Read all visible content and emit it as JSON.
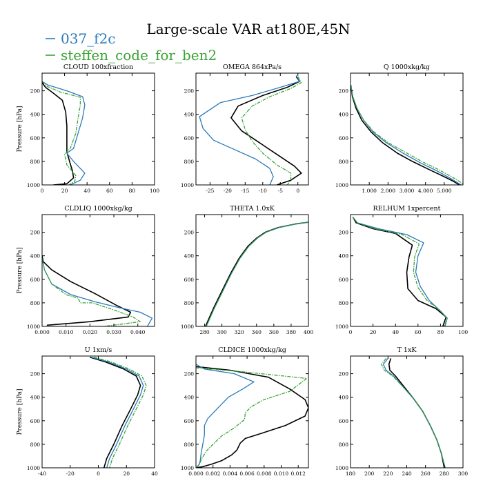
{
  "title": "Large-scale VAR at180E,45N",
  "legend": [
    {
      "label": "037_f2c",
      "color": "#2a7ab8"
    },
    {
      "label": "steffen_code_for_ben2",
      "color": "#3aa335"
    }
  ],
  "series_colors": {
    "black": "#000000",
    "blue": "#2a7ab8",
    "green": "#3aa335"
  },
  "chart_data": [
    {
      "type": "line",
      "title": "CLOUD 100xfraction",
      "ylabel": "Pressure [hPa]",
      "xlim": [
        0,
        100
      ],
      "ylim": [
        1000,
        50
      ],
      "xticks": [
        0,
        20,
        40,
        60,
        80,
        100
      ],
      "xtick_labels": [
        "0",
        "20",
        "40",
        "60",
        "80",
        "100"
      ],
      "yticks": [
        200,
        400,
        600,
        800,
        1000
      ],
      "series": [
        {
          "key": "black",
          "x": [
            0,
            3,
            10,
            18,
            21,
            22,
            22,
            22,
            25,
            27,
            28,
            22,
            10
          ],
          "y": [
            130,
            170,
            220,
            280,
            380,
            500,
            640,
            720,
            820,
            880,
            940,
            990,
            1000
          ]
        },
        {
          "key": "blue",
          "x": [
            0,
            5,
            22,
            36,
            38,
            36,
            32,
            28,
            22,
            28,
            38,
            34,
            25
          ],
          "y": [
            120,
            150,
            200,
            250,
            320,
            430,
            560,
            690,
            730,
            800,
            900,
            960,
            1000
          ]
        },
        {
          "key": "green",
          "x": [
            0,
            4,
            16,
            34,
            34,
            32,
            30,
            25,
            20,
            22,
            30,
            29,
            24
          ],
          "y": [
            120,
            160,
            210,
            255,
            320,
            430,
            560,
            690,
            740,
            830,
            920,
            970,
            1000
          ]
        }
      ]
    },
    {
      "type": "line",
      "title": "OMEGA 864xPa/s",
      "xlim": [
        -29,
        3
      ],
      "ylim": [
        1000,
        50
      ],
      "xticks": [
        -25,
        -20,
        -15,
        -10,
        -5,
        0
      ],
      "xtick_labels": [
        "-25",
        "-20",
        "-15",
        "-10",
        "-5",
        "0"
      ],
      "yticks": [
        200,
        400,
        600,
        800,
        1000
      ],
      "series": [
        {
          "key": "black",
          "x": [
            -0.5,
            0.5,
            -3,
            -10,
            -17,
            -19,
            -16,
            -11,
            -6,
            -1,
            1,
            -2,
            -6
          ],
          "y": [
            80,
            120,
            170,
            240,
            330,
            430,
            540,
            640,
            740,
            840,
            900,
            960,
            1000
          ]
        },
        {
          "key": "blue",
          "x": [
            -0.5,
            0.5,
            -5,
            -13,
            -22,
            -28,
            -27,
            -24,
            -18,
            -12,
            -8,
            -7,
            -8
          ],
          "y": [
            70,
            120,
            170,
            240,
            300,
            420,
            520,
            620,
            700,
            780,
            860,
            930,
            1000
          ]
        },
        {
          "key": "green",
          "x": [
            0,
            1,
            -2,
            -8,
            -13,
            -16,
            -15,
            -13,
            -10,
            -6,
            -2,
            -2,
            -3
          ],
          "y": [
            80,
            130,
            180,
            250,
            330,
            430,
            530,
            630,
            730,
            830,
            900,
            960,
            1000
          ]
        }
      ]
    },
    {
      "type": "line",
      "title": "Q 1000xkg/kg",
      "xlim": [
        0,
        6
      ],
      "ylim": [
        1000,
        50
      ],
      "xticks": [
        1,
        2,
        3,
        4,
        5
      ],
      "xtick_labels": [
        "1.000",
        "2.000",
        "3.000",
        "4.000",
        "5.000"
      ],
      "yticks": [
        200,
        400,
        600,
        800,
        1000
      ],
      "series": [
        {
          "key": "black",
          "x": [
            0.02,
            0.1,
            0.3,
            0.6,
            1.1,
            1.7,
            2.5,
            3.3,
            4.2,
            5.0,
            5.5,
            5.8
          ],
          "y": [
            150,
            250,
            350,
            450,
            550,
            640,
            730,
            800,
            870,
            930,
            970,
            1000
          ]
        },
        {
          "key": "blue",
          "x": [
            0.02,
            0.12,
            0.35,
            0.7,
            1.2,
            1.9,
            2.8,
            3.7,
            4.6,
            5.4,
            5.9
          ],
          "y": [
            150,
            250,
            350,
            450,
            550,
            640,
            730,
            810,
            880,
            950,
            1000
          ]
        },
        {
          "key": "green",
          "x": [
            0.02,
            0.12,
            0.35,
            0.7,
            1.25,
            2.0,
            2.9,
            3.8,
            4.7,
            5.5,
            6.0
          ],
          "y": [
            150,
            250,
            350,
            450,
            550,
            640,
            720,
            800,
            870,
            940,
            990
          ]
        }
      ]
    },
    {
      "type": "line",
      "title": "CLDLIQ 1000xkg/kg",
      "ylabel": "Pressure [hPa]",
      "xlim": [
        0,
        0.047
      ],
      "ylim": [
        1000,
        50
      ],
      "xticks": [
        0,
        0.01,
        0.02,
        0.03,
        0.04
      ],
      "xtick_labels": [
        "0.000",
        "0.010",
        "0.020",
        "0.030",
        "0.040"
      ],
      "yticks": [
        200,
        400,
        600,
        800,
        1000
      ],
      "series": [
        {
          "key": "black",
          "x": [
            0,
            0.0005,
            0.004,
            0.012,
            0.022,
            0.031,
            0.037,
            0.036,
            0.02,
            0.002
          ],
          "y": [
            400,
            450,
            520,
            620,
            720,
            820,
            880,
            920,
            960,
            990
          ]
        },
        {
          "key": "blue",
          "x": [
            0,
            0.001,
            0.004,
            0.012,
            0.022,
            0.032,
            0.041,
            0.046,
            0.044
          ],
          "y": [
            420,
            520,
            640,
            730,
            790,
            840,
            880,
            930,
            1000
          ]
        },
        {
          "key": "green",
          "x": [
            0,
            0.001,
            0.004,
            0.01,
            0.015,
            0.016,
            0.021,
            0.03,
            0.038,
            0.041,
            0.026
          ],
          "y": [
            420,
            520,
            640,
            730,
            760,
            800,
            800,
            860,
            920,
            960,
            1000
          ]
        }
      ]
    },
    {
      "type": "line",
      "title": "THETA 1.0xK",
      "xlim": [
        270,
        400
      ],
      "ylim": [
        1000,
        50
      ],
      "xticks": [
        280,
        300,
        320,
        340,
        360,
        380,
        400
      ],
      "xtick_labels": [
        "280",
        "300",
        "320",
        "340",
        "360",
        "380",
        "400"
      ],
      "yticks": [
        200,
        400,
        600,
        800,
        1000
      ],
      "series": [
        {
          "key": "black",
          "x": [
            281,
            290,
            300,
            310,
            320,
            330,
            340,
            350,
            365,
            385,
            400
          ],
          "y": [
            1000,
            850,
            700,
            550,
            420,
            320,
            250,
            200,
            160,
            130,
            115
          ]
        },
        {
          "key": "blue",
          "x": [
            282,
            291,
            301,
            311,
            321,
            331,
            341,
            351,
            366,
            386,
            400
          ],
          "y": [
            1000,
            850,
            700,
            550,
            420,
            320,
            250,
            200,
            160,
            130,
            115
          ]
        },
        {
          "key": "green",
          "x": [
            282,
            291,
            301,
            311,
            321,
            331,
            341,
            351,
            366,
            386,
            400
          ],
          "y": [
            1000,
            850,
            700,
            550,
            420,
            320,
            250,
            200,
            160,
            130,
            115
          ]
        }
      ]
    },
    {
      "type": "line",
      "title": "RELHUM 1xpercent",
      "xlim": [
        0,
        100
      ],
      "ylim": [
        1000,
        50
      ],
      "xticks": [
        0,
        20,
        40,
        60,
        80,
        100
      ],
      "xtick_labels": [
        "0",
        "20",
        "40",
        "60",
        "80",
        "100"
      ],
      "yticks": [
        200,
        400,
        600,
        800,
        1000
      ],
      "series": [
        {
          "key": "black",
          "x": [
            2,
            5,
            20,
            40,
            55,
            52,
            50,
            51,
            60,
            76,
            85,
            82
          ],
          "y": [
            70,
            120,
            170,
            210,
            310,
            410,
            540,
            680,
            780,
            850,
            920,
            1000
          ]
        },
        {
          "key": "blue",
          "x": [
            2,
            6,
            25,
            50,
            65,
            60,
            58,
            62,
            70,
            80,
            86,
            84
          ],
          "y": [
            70,
            120,
            170,
            220,
            290,
            400,
            540,
            660,
            780,
            870,
            930,
            1000
          ]
        },
        {
          "key": "green",
          "x": [
            2,
            6,
            22,
            46,
            61,
            57,
            56,
            60,
            68,
            79,
            86,
            83
          ],
          "y": [
            70,
            120,
            170,
            220,
            300,
            410,
            540,
            670,
            780,
            860,
            930,
            1000
          ]
        }
      ]
    },
    {
      "type": "line",
      "title": "U 1xm/s",
      "ylabel": "Pressure [hPa]",
      "xlim": [
        -40,
        40
      ],
      "ylim": [
        1000,
        50
      ],
      "xticks": [
        -40,
        -20,
        0,
        20,
        40
      ],
      "xtick_labels": [
        "-40",
        "-20",
        "0",
        "20",
        "40"
      ],
      "yticks": [
        200,
        400,
        600,
        800,
        1000
      ],
      "series": [
        {
          "key": "black",
          "x": [
            -6,
            5,
            18,
            27,
            30,
            28,
            23,
            17,
            11,
            6,
            4
          ],
          "y": [
            60,
            100,
            160,
            220,
            300,
            380,
            500,
            640,
            800,
            920,
            1000
          ]
        },
        {
          "key": "blue",
          "x": [
            -5,
            7,
            20,
            29,
            32,
            30,
            25,
            19,
            13,
            8,
            6
          ],
          "y": [
            60,
            100,
            160,
            220,
            300,
            380,
            500,
            640,
            800,
            920,
            1000
          ]
        },
        {
          "key": "green",
          "x": [
            -3,
            9,
            22,
            31,
            34,
            32,
            27,
            21,
            15,
            10,
            8
          ],
          "y": [
            60,
            100,
            160,
            220,
            300,
            380,
            500,
            640,
            800,
            920,
            1000
          ]
        }
      ]
    },
    {
      "type": "line",
      "title": "CLDICE 1000xkg/kg",
      "xlim": [
        0,
        0.0132
      ],
      "ylim": [
        1000,
        50
      ],
      "xticks": [
        0,
        0.002,
        0.004,
        0.006,
        0.008,
        0.01,
        0.012
      ],
      "xtick_labels": [
        "0.000",
        "0.002",
        "0.004",
        "0.006",
        "0.008",
        "0.010",
        "0.012"
      ],
      "yticks": [
        200,
        400,
        600,
        800,
        1000
      ],
      "series": [
        {
          "key": "black",
          "x": [
            0,
            0.004,
            0.0085,
            0.011,
            0.0128,
            0.0132,
            0.0128,
            0.0105,
            0.008,
            0.0058,
            0.0052,
            0.0048,
            0.0042,
            0.003,
            0.0018,
            0.0008,
            0
          ],
          "y": [
            140,
            170,
            230,
            330,
            420,
            490,
            560,
            640,
            700,
            750,
            790,
            850,
            890,
            940,
            970,
            990,
            1000
          ]
        },
        {
          "key": "blue",
          "x": [
            0,
            0.001,
            0.0045,
            0.0068,
            0.0055,
            0.0038,
            0.003,
            0.0022,
            0.0014,
            0.001,
            0.001,
            0.0008,
            0.0006,
            0.0005,
            0.0003,
            0
          ],
          "y": [
            120,
            160,
            200,
            270,
            330,
            400,
            460,
            520,
            580,
            640,
            720,
            800,
            880,
            940,
            980,
            1000
          ]
        },
        {
          "key": "green",
          "x": [
            0,
            0.005,
            0.013,
            0.011,
            0.008,
            0.0065,
            0.0058,
            0.0057,
            0.0045,
            0.003,
            0.002,
            0.0012,
            0.0007,
            0.0004,
            0
          ],
          "y": [
            150,
            180,
            240,
            350,
            420,
            480,
            530,
            590,
            660,
            730,
            800,
            860,
            920,
            970,
            1000
          ]
        }
      ]
    },
    {
      "type": "line",
      "title": "T 1xK",
      "xlim": [
        180,
        300
      ],
      "ylim": [
        1000,
        50
      ],
      "xticks": [
        180,
        200,
        220,
        240,
        260,
        280,
        300
      ],
      "xtick_labels": [
        "180",
        "200",
        "220",
        "240",
        "260",
        "280",
        "300"
      ],
      "yticks": [
        200,
        400,
        600,
        800,
        1000
      ],
      "series": [
        {
          "key": "black",
          "x": [
            223,
            221,
            222,
            228,
            238,
            248,
            257,
            265,
            272,
            277,
            280
          ],
          "y": [
            70,
            120,
            170,
            220,
            320,
            420,
            520,
            640,
            760,
            880,
            1000
          ]
        },
        {
          "key": "blue",
          "x": [
            220,
            215,
            218,
            226,
            237,
            248,
            257,
            265,
            272,
            277,
            281
          ],
          "y": [
            70,
            120,
            170,
            220,
            320,
            420,
            520,
            640,
            760,
            880,
            1000
          ]
        },
        {
          "key": "green",
          "x": [
            218,
            213,
            216,
            225,
            237,
            248,
            257,
            265,
            272,
            277,
            281
          ],
          "y": [
            70,
            120,
            170,
            220,
            320,
            420,
            520,
            640,
            760,
            880,
            1000
          ]
        }
      ]
    }
  ]
}
